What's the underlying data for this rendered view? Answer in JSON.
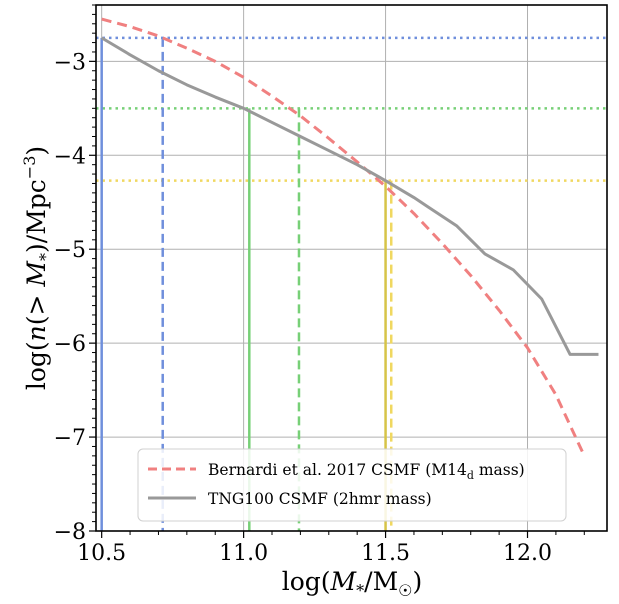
{
  "chart_data": {
    "type": "line",
    "title": "",
    "xlabel": "log(M*/M☉)",
    "ylabel": "log(n(> M*)/Mpc⁻³)",
    "xlim": [
      10.48,
      12.28
    ],
    "ylim": [
      -8,
      -2.4
    ],
    "xticks": [
      10.5,
      11.0,
      11.5,
      12.0
    ],
    "xtick_labels": [
      "10.5",
      "11.0",
      "11.5",
      "12.0"
    ],
    "yticks": [
      -8,
      -7,
      -6,
      -5,
      -4,
      -3
    ],
    "ytick_labels": [
      "−8",
      "−7",
      "−6",
      "−5",
      "−4",
      "−3"
    ],
    "grid": true,
    "legend_position": "lower-center",
    "series": [
      {
        "name": "Bernardi et al. 2017 CSMF (M14",
        "name_subscript": "d",
        "name_suffix": " mass)",
        "color": "#f08080",
        "style": "dashed",
        "x": [
          10.5,
          10.6,
          10.7,
          10.8,
          10.9,
          11.0,
          11.1,
          11.2,
          11.3,
          11.4,
          11.5,
          11.6,
          11.7,
          11.8,
          11.9,
          12.0,
          12.1,
          12.2
        ],
        "y": [
          -2.55,
          -2.63,
          -2.73,
          -2.86,
          -3.0,
          -3.17,
          -3.37,
          -3.58,
          -3.82,
          -4.07,
          -4.33,
          -4.62,
          -4.94,
          -5.28,
          -5.65,
          -6.05,
          -6.55,
          -7.2
        ]
      },
      {
        "name": "TNG100 CSMF (2hmr mass)",
        "color": "#999999",
        "style": "solid",
        "x": [
          10.5,
          10.6,
          10.7,
          10.8,
          10.9,
          11.0,
          11.1,
          11.2,
          11.3,
          11.4,
          11.5,
          11.6,
          11.65,
          11.75,
          11.85,
          11.95,
          12.05,
          12.15,
          12.25
        ],
        "y": [
          -2.75,
          -2.93,
          -3.1,
          -3.25,
          -3.38,
          -3.5,
          -3.65,
          -3.8,
          -3.95,
          -4.1,
          -4.27,
          -4.45,
          -4.55,
          -4.75,
          -5.05,
          -5.22,
          -5.53,
          -6.12,
          -6.12
        ]
      }
    ],
    "markers": {
      "vertical": [
        {
          "x": 10.5,
          "style": "solid",
          "color": "#6f8fdc"
        },
        {
          "x": 10.715,
          "style": "dashed",
          "color": "#6f8fdc"
        },
        {
          "x": 11.02,
          "style": "solid",
          "color": "#77d077"
        },
        {
          "x": 11.195,
          "style": "dashed",
          "color": "#77d077"
        },
        {
          "x": 11.5,
          "style": "solid",
          "color": "#d6c448"
        },
        {
          "x": 11.52,
          "style": "dashed",
          "color": "#f0d860"
        }
      ],
      "horizontal": [
        {
          "y": -2.75,
          "color": "#6f8fdc"
        },
        {
          "y": -3.5,
          "color": "#77d077"
        },
        {
          "y": -4.27,
          "color": "#f0d860"
        }
      ]
    }
  }
}
